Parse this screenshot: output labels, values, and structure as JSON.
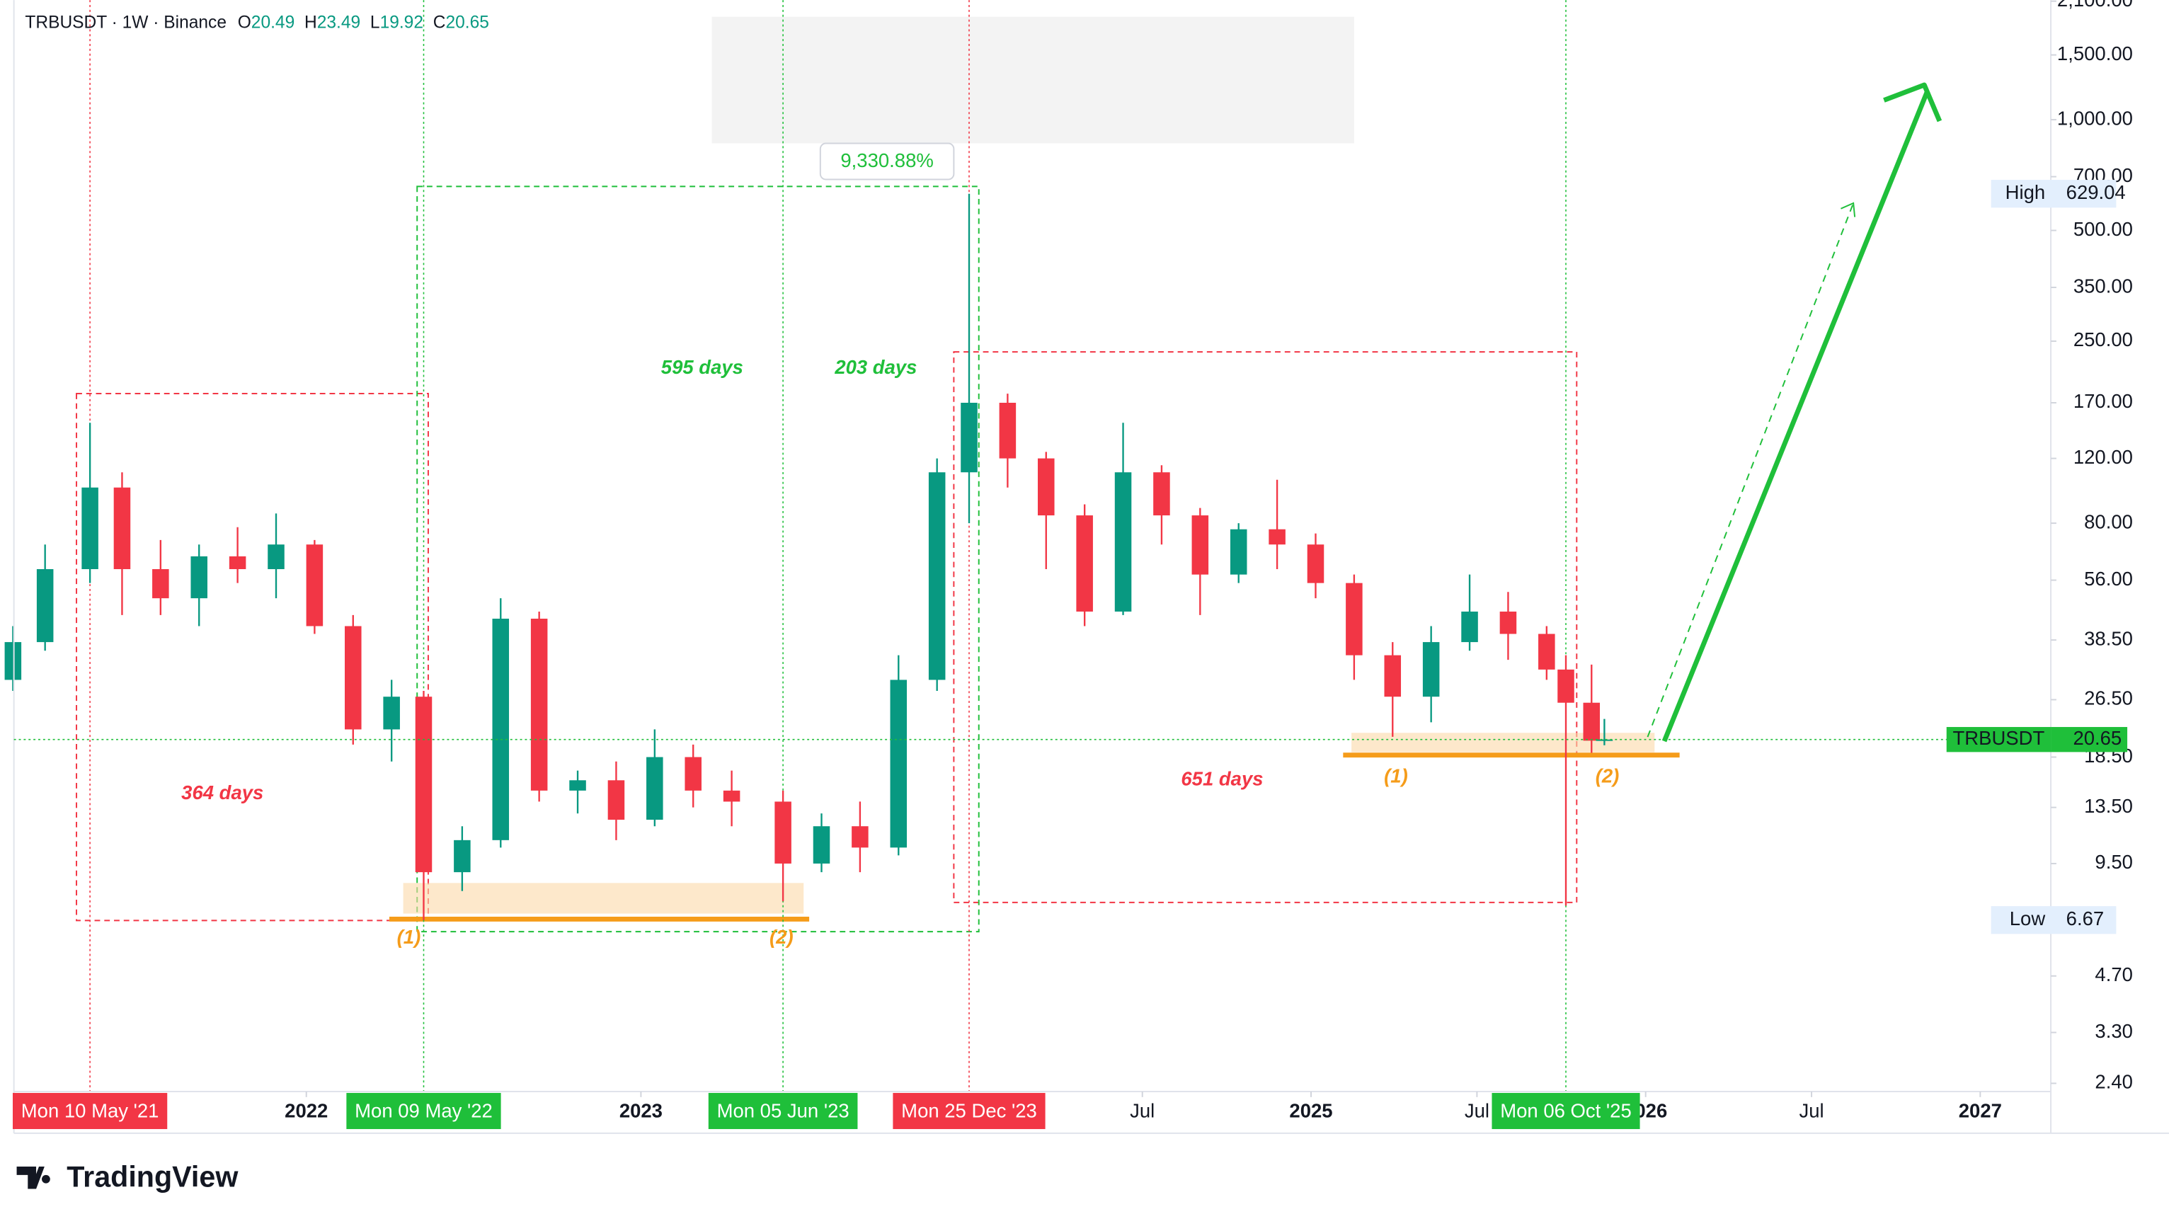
{
  "chart_data": {
    "type": "candlestick",
    "header": {
      "symbol": "TRBUSDT · 1W · Binance",
      "ohlc": [
        {
          "label": "O",
          "value": 20.49
        },
        {
          "label": "H",
          "value": 23.49
        },
        {
          "label": "L",
          "value": 19.92
        },
        {
          "label": "C",
          "value": 20.65
        }
      ]
    },
    "log_scale": true,
    "grid": false,
    "up_color": "#089981",
    "down_color": "#f23645",
    "ylim": [
      2.28,
      2114
    ],
    "yticks": [
      {
        "value": 2100,
        "label": "2,100.00"
      },
      {
        "value": 1500,
        "label": "1,500.00"
      },
      {
        "value": 1000,
        "label": "1,000.00"
      },
      {
        "value": 700,
        "label": "700.00"
      },
      {
        "value": 500,
        "label": "500.00"
      },
      {
        "value": 350,
        "label": "350.00"
      },
      {
        "value": 250,
        "label": "250.00"
      },
      {
        "value": 170,
        "label": "170.00"
      },
      {
        "value": 120,
        "label": "120.00"
      },
      {
        "value": 80,
        "label": "80.00"
      },
      {
        "value": 56,
        "label": "56.00"
      },
      {
        "value": 38.5,
        "label": "38.50"
      },
      {
        "value": 26.5,
        "label": "26.50"
      },
      {
        "value": 18.5,
        "label": "18.50"
      },
      {
        "value": 13.5,
        "label": "13.50"
      },
      {
        "value": 9.5,
        "label": "9.50"
      },
      {
        "value": 4.7,
        "label": "4.70"
      },
      {
        "value": 3.3,
        "label": "3.30"
      },
      {
        "value": 2.4,
        "label": "2.40"
      }
    ],
    "xlim": [
      "2021-02-16",
      "2027-03-19"
    ],
    "xticks": [
      {
        "value": "2022-01-01",
        "label": "2022",
        "bold": true
      },
      {
        "value": "2023-01-01",
        "label": "2023",
        "bold": true
      },
      {
        "value": "2024-07-01",
        "label": "Jul",
        "bold": false
      },
      {
        "value": "2025-01-01",
        "label": "2025",
        "bold": true
      },
      {
        "value": "2025-07-01",
        "label": "Jul",
        "bold": false
      },
      {
        "value": "2026-01-01",
        "label": "2026",
        "bold": true
      },
      {
        "value": "2026-07-01",
        "label": "Jul",
        "bold": false
      },
      {
        "value": "2027-01-01",
        "label": "2027",
        "bold": true
      }
    ],
    "date_flags": [
      {
        "value": "2021-05-10",
        "label": "Mon 10 May '21",
        "color": "#f23645"
      },
      {
        "value": "2022-05-09",
        "label": "Mon 09 May '22",
        "color": "#1fbf3a"
      },
      {
        "value": "2023-06-05",
        "label": "Mon 05 Jun '23",
        "color": "#1fbf3a"
      },
      {
        "value": "2023-12-25",
        "label": "Mon 25 Dec '23",
        "color": "#f23645"
      },
      {
        "value": "2025-10-06",
        "label": "Mon 06 Oct '25",
        "color": "#1fbf3a"
      }
    ],
    "candles": [
      {
        "date": "2021-02-15",
        "open": 30,
        "high": 42,
        "low": 28,
        "close": 38
      },
      {
        "date": "2021-03-22",
        "open": 38,
        "high": 70,
        "low": 36,
        "close": 60
      },
      {
        "date": "2021-05-10",
        "open": 60,
        "high": 150,
        "low": 55,
        "close": 100
      },
      {
        "date": "2021-06-14",
        "open": 100,
        "high": 110,
        "low": 45,
        "close": 60
      },
      {
        "date": "2021-07-26",
        "open": 60,
        "high": 72,
        "low": 45,
        "close": 50
      },
      {
        "date": "2021-09-06",
        "open": 50,
        "high": 70,
        "low": 42,
        "close": 65
      },
      {
        "date": "2021-10-18",
        "open": 65,
        "high": 78,
        "low": 55,
        "close": 60
      },
      {
        "date": "2021-11-29",
        "open": 60,
        "high": 85,
        "low": 50,
        "close": 70
      },
      {
        "date": "2022-01-10",
        "open": 70,
        "high": 72,
        "low": 40,
        "close": 42
      },
      {
        "date": "2022-02-21",
        "open": 42,
        "high": 45,
        "low": 20,
        "close": 22
      },
      {
        "date": "2022-04-04",
        "open": 22,
        "high": 30,
        "low": 18,
        "close": 27
      },
      {
        "date": "2022-05-09",
        "open": 27,
        "high": 28,
        "low": 6.67,
        "close": 9
      },
      {
        "date": "2022-06-20",
        "open": 9,
        "high": 12,
        "low": 8,
        "close": 11
      },
      {
        "date": "2022-08-01",
        "open": 11,
        "high": 50,
        "low": 10.5,
        "close": 44
      },
      {
        "date": "2022-09-12",
        "open": 44,
        "high": 46,
        "low": 14,
        "close": 15
      },
      {
        "date": "2022-10-24",
        "open": 15,
        "high": 17,
        "low": 13,
        "close": 16
      },
      {
        "date": "2022-12-05",
        "open": 16,
        "high": 18,
        "low": 11,
        "close": 12.5
      },
      {
        "date": "2023-01-16",
        "open": 12.5,
        "high": 22,
        "low": 12,
        "close": 18.5
      },
      {
        "date": "2023-02-27",
        "open": 18.5,
        "high": 20,
        "low": 13.5,
        "close": 15
      },
      {
        "date": "2023-04-10",
        "open": 15,
        "high": 17,
        "low": 12,
        "close": 14
      },
      {
        "date": "2023-06-05",
        "open": 14,
        "high": 15,
        "low": 7.5,
        "close": 9.5
      },
      {
        "date": "2023-07-17",
        "open": 9.5,
        "high": 13,
        "low": 9,
        "close": 12
      },
      {
        "date": "2023-08-28",
        "open": 12,
        "high": 14,
        "low": 9,
        "close": 10.5
      },
      {
        "date": "2023-10-09",
        "open": 10.5,
        "high": 35,
        "low": 10,
        "close": 30
      },
      {
        "date": "2023-11-20",
        "open": 30,
        "high": 120,
        "low": 28,
        "close": 110
      },
      {
        "date": "2023-12-25",
        "open": 110,
        "high": 629.04,
        "low": 80,
        "close": 170
      },
      {
        "date": "2024-02-05",
        "open": 170,
        "high": 180,
        "low": 100,
        "close": 120
      },
      {
        "date": "2024-03-18",
        "open": 120,
        "high": 125,
        "low": 60,
        "close": 84
      },
      {
        "date": "2024-04-29",
        "open": 84,
        "high": 90,
        "low": 42,
        "close": 46
      },
      {
        "date": "2024-06-10",
        "open": 46,
        "high": 150,
        "low": 45,
        "close": 110
      },
      {
        "date": "2024-07-22",
        "open": 110,
        "high": 115,
        "low": 70,
        "close": 84
      },
      {
        "date": "2024-09-02",
        "open": 84,
        "high": 88,
        "low": 45,
        "close": 58
      },
      {
        "date": "2024-10-14",
        "open": 58,
        "high": 80,
        "low": 55,
        "close": 77
      },
      {
        "date": "2024-11-25",
        "open": 77,
        "high": 105,
        "low": 60,
        "close": 70
      },
      {
        "date": "2025-01-06",
        "open": 70,
        "high": 75,
        "low": 50,
        "close": 55
      },
      {
        "date": "2025-02-17",
        "open": 55,
        "high": 58,
        "low": 30,
        "close": 35
      },
      {
        "date": "2025-03-31",
        "open": 35,
        "high": 38,
        "low": 21,
        "close": 27
      },
      {
        "date": "2025-05-12",
        "open": 27,
        "high": 42,
        "low": 23,
        "close": 38
      },
      {
        "date": "2025-06-23",
        "open": 38,
        "high": 58,
        "low": 36,
        "close": 46
      },
      {
        "date": "2025-08-04",
        "open": 46,
        "high": 52,
        "low": 34,
        "close": 40
      },
      {
        "date": "2025-09-15",
        "open": 40,
        "high": 42,
        "low": 30,
        "close": 32
      },
      {
        "date": "2025-10-06",
        "open": 32,
        "high": 35,
        "low": 7.3,
        "close": 26
      },
      {
        "date": "2025-11-03",
        "open": 26,
        "high": 33,
        "low": 19,
        "close": 20.5
      },
      {
        "date": "2025-11-17",
        "open": 20.49,
        "high": 23.49,
        "low": 19.92,
        "close": 20.65
      }
    ],
    "last_price": {
      "symbol": "TRBUSDT",
      "value": 20.65,
      "color": "#1fbf3a"
    },
    "high_marker": {
      "label": "High",
      "value": 629.04
    },
    "low_marker": {
      "label": "Low",
      "value": 6.67
    },
    "measure": {
      "value": 9330.88,
      "label": "9,330.88%"
    },
    "annotations": {
      "d595": "595 days",
      "d203": "203 days",
      "d364": "364 days",
      "d651": "651 days",
      "a1": "(1)",
      "a2": "(2)",
      "b1": "(1)",
      "b2": "(2)"
    },
    "logo": "TradingView"
  }
}
